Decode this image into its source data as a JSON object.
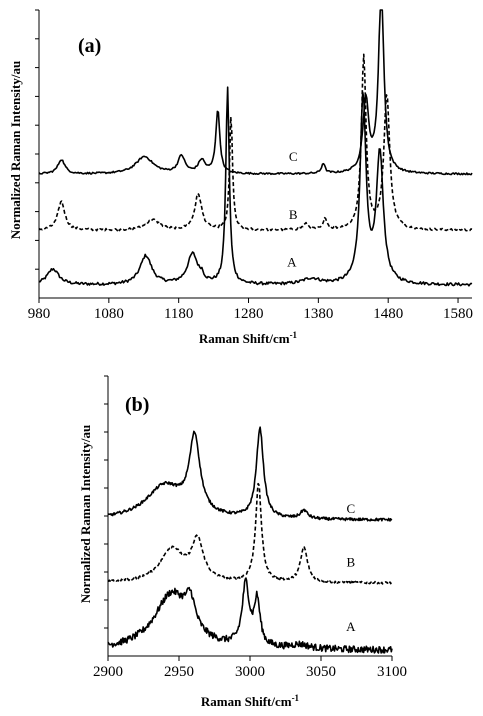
{
  "chart_data": [
    {
      "type": "line",
      "panel_label": "(a)",
      "xlabel": "Raman Shift/cm",
      "xlabel_sup": "-1",
      "ylabel": "Normalized Raman Intensity/au",
      "xlim": [
        980,
        1600
      ],
      "ylim": [
        0,
        10
      ],
      "xticks": [
        "980",
        "1080",
        "1180",
        "1280",
        "1380",
        "1480",
        "1580"
      ],
      "xtick_values": [
        980,
        1080,
        1180,
        1280,
        1380,
        1480,
        1580
      ],
      "yticks_count": 10,
      "grid": false,
      "series": [
        {
          "name": "A",
          "dashed": false,
          "label_at": [
            1342,
            1.1
          ],
          "baseline": 0.45,
          "noise": 0.05,
          "peaks": [
            [
              1000,
              0.55,
              10
            ],
            [
              1133,
              1.0,
              10
            ],
            [
              1200,
              1.05,
              9
            ],
            [
              1213,
              0.2,
              3
            ],
            [
              1250,
              6.8,
              3
            ],
            [
              1370,
              0.2,
              15
            ],
            [
              1444,
              6.5,
              5
            ],
            [
              1468,
              4.5,
              6
            ]
          ]
        },
        {
          "name": "B",
          "dashed": true,
          "label_at": [
            1344,
            2.75
          ],
          "baseline": 2.35,
          "noise": 0.04,
          "peaks": [
            [
              1012,
              1.0,
              6
            ],
            [
              1143,
              0.35,
              12
            ],
            [
              1208,
              1.25,
              6
            ],
            [
              1255,
              4.0,
              2.5
            ],
            [
              1362,
              0.2,
              5
            ],
            [
              1390,
              0.4,
              3
            ],
            [
              1445,
              6.0,
              4
            ],
            [
              1478,
              4.7,
              5
            ]
          ]
        },
        {
          "name": "C",
          "dashed": false,
          "label_at": [
            1344,
            4.75
          ],
          "baseline": 4.3,
          "noise": 0.03,
          "peaks": [
            [
              1012,
              0.5,
              6
            ],
            [
              1131,
              0.6,
              15
            ],
            [
              1184,
              0.6,
              6
            ],
            [
              1213,
              0.45,
              6
            ],
            [
              1236,
              2.2,
              3.5
            ],
            [
              1387,
              0.35,
              3
            ],
            [
              1448,
              2.5,
              5
            ],
            [
              1470,
              6.5,
              4.5
            ]
          ]
        }
      ]
    },
    {
      "type": "line",
      "panel_label": "(b)",
      "xlabel": "Raman Shift/cm",
      "xlabel_sup": "-1",
      "ylabel": "Normalized Raman Intensity/au",
      "xlim": [
        2900,
        3100
      ],
      "ylim": [
        0,
        10
      ],
      "xticks": [
        "2900",
        "2950",
        "3000",
        "3050",
        "3100"
      ],
      "xtick_values": [
        2900,
        2950,
        3000,
        3050,
        3100
      ],
      "yticks_count": 10,
      "grid": false,
      "series": [
        {
          "name": "A",
          "dashed": false,
          "label_at": [
            3071,
            0.9
          ],
          "baseline": 0.2,
          "noise": 0.12,
          "peaks": [
            [
              2945,
              2.0,
              15
            ],
            [
              2958,
              1.0,
              4
            ],
            [
              2997,
              2.2,
              3
            ],
            [
              3005,
              1.6,
              2.5
            ],
            [
              3035,
              0.15,
              8
            ]
          ]
        },
        {
          "name": "B",
          "dashed": true,
          "label_at": [
            3071,
            3.2
          ],
          "baseline": 2.6,
          "noise": 0.04,
          "peaks": [
            [
              2945,
              1.2,
              10
            ],
            [
              2963,
              1.4,
              5
            ],
            [
              3006,
              3.5,
              2.5
            ],
            [
              3038,
              1.25,
              3
            ]
          ]
        },
        {
          "name": "C",
          "dashed": false,
          "label_at": [
            3071,
            5.1
          ],
          "baseline": 4.85,
          "noise": 0.05,
          "peaks": [
            [
              2940,
              1.2,
              16
            ],
            [
              2961,
              2.7,
              4.5
            ],
            [
              3007,
              3.2,
              3
            ],
            [
              3038,
              0.3,
              3
            ]
          ]
        }
      ]
    }
  ]
}
